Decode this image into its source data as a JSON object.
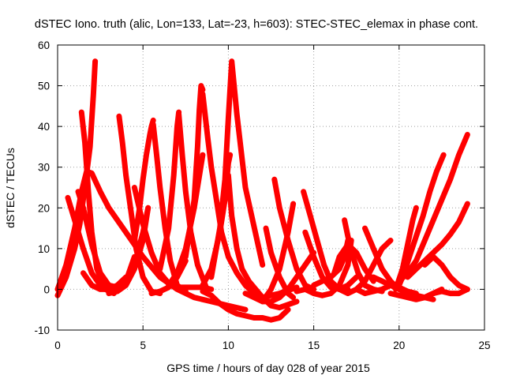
{
  "chart_data": {
    "type": "scatter",
    "title": "dSTEC Iono. truth (alic, Lon=133, Lat=-23, h=603): STEC-STEC_elemax in phase cont.",
    "xlabel": "GPS time / hours of day 028 of year 2015",
    "ylabel": "dSTEC  / TECUs",
    "xlim": [
      0,
      25
    ],
    "ylim": [
      -10,
      60
    ],
    "xticks": [
      0,
      5,
      10,
      15,
      20,
      25
    ],
    "xtick_labels": [
      "0",
      "5",
      "10",
      "15",
      "20",
      "25"
    ],
    "yticks": [
      -10,
      0,
      10,
      20,
      30,
      40,
      50,
      60
    ],
    "ytick_labels": [
      "-10",
      "0",
      "10",
      "20",
      "30",
      "40",
      "50",
      "60"
    ],
    "grid": true,
    "grid_style": "dotted",
    "marker": "+",
    "color": "#ff0000",
    "series": [
      {
        "x": [
          0.0,
          0.5,
          1.0,
          1.3,
          1.6,
          1.9,
          2.1,
          2.2
        ],
        "values": [
          -1.5,
          3.0,
          10.0,
          16.0,
          25.0,
          35.0,
          48.0,
          56.0
        ]
      },
      {
        "x": [
          1.4,
          1.6,
          1.8,
          2.0,
          2.3,
          2.8,
          3.3
        ],
        "values": [
          43.5,
          36.0,
          24.0,
          14.0,
          5.0,
          0.0,
          -1.0
        ]
      },
      {
        "x": [
          0.6,
          1.0,
          1.5,
          2.0,
          2.5,
          3.0,
          4.0,
          4.5
        ],
        "values": [
          22.5,
          17.0,
          10.0,
          4.0,
          1.0,
          -0.5,
          2.0,
          8.0
        ]
      },
      {
        "x": [
          0.0,
          0.5,
          1.0,
          1.4,
          1.7,
          2.0,
          2.5,
          3.0,
          4.0,
          5.0,
          6.0,
          7.0,
          8.0,
          9.0,
          10.0,
          11.0
        ],
        "values": [
          0.0,
          6.0,
          15.0,
          24.0,
          29.0,
          28.5,
          24.0,
          20.0,
          14.0,
          8.0,
          3.0,
          0.0,
          -2.0,
          -3.0,
          -4.0,
          -5.0
        ]
      },
      {
        "x": [
          1.2,
          1.5,
          2.0,
          2.5,
          3.0,
          3.5,
          4.0,
          4.5,
          5.0,
          5.3
        ],
        "values": [
          24.0,
          20.0,
          11.0,
          4.0,
          1.0,
          0.5,
          2.0,
          6.0,
          14.0,
          20.0
        ]
      },
      {
        "x": [
          1.5,
          2.0,
          2.5,
          3.0,
          3.5,
          4.0
        ],
        "values": [
          4.0,
          1.0,
          0.0,
          0.0,
          1.0,
          3.0
        ]
      },
      {
        "x": [
          3.6,
          3.8,
          4.0,
          4.3,
          4.6,
          5.0,
          5.5,
          6.0
        ],
        "values": [
          42.5,
          36.0,
          28.0,
          19.0,
          10.0,
          3.0,
          -0.5,
          -1.0
        ]
      },
      {
        "x": [
          3.0,
          3.5,
          4.0,
          4.5,
          5.0,
          5.3
        ],
        "values": [
          -1.0,
          -0.5,
          1.0,
          5.0,
          12.0,
          20.0
        ]
      },
      {
        "x": [
          4.5,
          4.8,
          5.0,
          5.2,
          5.4,
          5.5,
          5.6
        ],
        "values": [
          12.0,
          20.0,
          27.0,
          33.0,
          38.0,
          40.0,
          41.5
        ]
      },
      {
        "x": [
          5.6,
          5.8,
          6.0,
          6.3,
          6.6,
          7.0,
          7.5
        ],
        "values": [
          40.5,
          33.0,
          25.0,
          15.0,
          7.0,
          1.0,
          -0.5
        ]
      },
      {
        "x": [
          5.5,
          6.0,
          6.5,
          7.0,
          7.5
        ],
        "values": [
          -1.0,
          -0.5,
          0.5,
          3.0,
          7.0
        ]
      },
      {
        "x": [
          4.5,
          5.0,
          5.5,
          6.0,
          6.5,
          7.0,
          7.5,
          8.0,
          8.5,
          9.0
        ],
        "values": [
          25.0,
          16.0,
          9.0,
          4.0,
          1.5,
          0.5,
          0.5,
          0.5,
          0.5,
          0.0
        ]
      },
      {
        "x": [
          6.0,
          6.5,
          6.8,
          7.0,
          7.1
        ],
        "values": [
          5.0,
          15.0,
          28.0,
          40.0,
          43.5
        ]
      },
      {
        "x": [
          7.1,
          7.3,
          7.5,
          7.8,
          8.2,
          8.7
        ],
        "values": [
          43.0,
          33.0,
          24.0,
          14.0,
          6.0,
          0.5
        ]
      },
      {
        "x": [
          6.5,
          7.0,
          7.5,
          8.0,
          8.5
        ],
        "values": [
          1.0,
          4.0,
          10.0,
          20.0,
          33.0
        ]
      },
      {
        "x": [
          7.5,
          8.0,
          8.2,
          8.3,
          8.4,
          8.5
        ],
        "values": [
          8.0,
          22.0,
          35.0,
          44.0,
          50.0,
          49.0
        ]
      },
      {
        "x": [
          8.5,
          8.8,
          9.0,
          9.3,
          9.6,
          10.0,
          10.5,
          11.0,
          11.5,
          12.0,
          13.0,
          14.0
        ],
        "values": [
          48.0,
          37.0,
          30.0,
          22.0,
          14.0,
          8.0,
          4.0,
          1.0,
          -1.0,
          -2.0,
          -1.0,
          0.5
        ]
      },
      {
        "x": [
          8.5,
          9.0,
          9.5,
          9.8,
          10.0,
          10.1
        ],
        "values": [
          1.0,
          5.0,
          14.0,
          22.0,
          31.0,
          33.0
        ]
      },
      {
        "x": [
          9.0,
          9.5,
          9.8,
          10.0,
          10.2,
          10.5,
          11.0,
          12.0
        ],
        "values": [
          3.0,
          15.0,
          27.0,
          42.0,
          56.0,
          43.0,
          25.0,
          6.0
        ]
      },
      {
        "x": [
          10.0,
          10.2,
          10.5,
          10.8,
          11.2,
          11.6,
          12.0,
          12.5,
          13.0,
          14.0
        ],
        "values": [
          28.0,
          18.0,
          10.0,
          5.0,
          2.0,
          0.0,
          -2.0,
          -4.0,
          -4.5,
          -3.0
        ]
      },
      {
        "x": [
          8.5,
          9.0,
          9.5,
          10.0,
          10.5,
          11.0,
          11.5,
          12.0,
          12.5,
          13.0,
          13.5
        ],
        "values": [
          -0.5,
          -1.5,
          -3.5,
          -5.0,
          -6.0,
          -6.5,
          -7.0,
          -7.0,
          -7.5,
          -7.0,
          -5.0
        ]
      },
      {
        "x": [
          11.0,
          11.5,
          12.0,
          12.5,
          13.0,
          13.5,
          14.0,
          14.5,
          15.0
        ],
        "values": [
          -1.0,
          -2.0,
          -3.0,
          -3.0,
          -2.0,
          0.0,
          3.0,
          6.0,
          9.0
        ]
      },
      {
        "x": [
          12.2,
          12.5,
          13.0,
          13.5,
          13.8
        ],
        "values": [
          15.0,
          9.0,
          3.0,
          -1.0,
          -2.0
        ]
      },
      {
        "x": [
          12.0,
          12.5,
          13.0,
          13.5,
          13.8
        ],
        "values": [
          -3.0,
          0.0,
          5.0,
          14.0,
          21.0
        ]
      },
      {
        "x": [
          12.7,
          13.0,
          13.5,
          14.0,
          14.5,
          15.0
        ],
        "values": [
          27.0,
          20.0,
          12.0,
          5.0,
          1.0,
          0.0
        ]
      },
      {
        "x": [
          14.4,
          14.8,
          15.2,
          15.6,
          16.0,
          16.5,
          17.0
        ],
        "values": [
          24.0,
          18.0,
          12.0,
          6.0,
          2.0,
          0.0,
          0.0
        ]
      },
      {
        "x": [
          14.5,
          15.0,
          15.5,
          16.0,
          16.5,
          17.0,
          17.5
        ],
        "values": [
          14.0,
          8.0,
          3.0,
          0.5,
          0.0,
          1.0,
          3.0
        ]
      },
      {
        "x": [
          14.0,
          14.5,
          15.0,
          15.5,
          16.0,
          16.5,
          17.0,
          17.2
        ],
        "values": [
          -0.5,
          0.0,
          -1.0,
          -1.5,
          -1.0,
          1.0,
          6.0,
          12.0
        ]
      },
      {
        "x": [
          15.0,
          15.5,
          16.0,
          16.5,
          16.8,
          17.0
        ],
        "values": [
          1.0,
          2.0,
          3.0,
          5.0,
          8.0,
          12.0
        ]
      },
      {
        "x": [
          16.2,
          16.5,
          17.0,
          17.5,
          18.0,
          18.5
        ],
        "values": [
          4.0,
          8.0,
          11.0,
          9.0,
          5.0,
          2.0
        ]
      },
      {
        "x": [
          16.8,
          17.0,
          17.3,
          17.6,
          18.0,
          18.5,
          19.0
        ],
        "values": [
          17.0,
          13.0,
          8.0,
          4.0,
          1.0,
          0.0,
          -0.5
        ]
      },
      {
        "x": [
          16.5,
          17.0,
          17.5,
          18.0,
          18.5,
          19.0,
          19.5
        ],
        "values": [
          0.0,
          -1.0,
          0.0,
          2.0,
          6.0,
          10.0,
          12.0
        ]
      },
      {
        "x": [
          18.0,
          18.5,
          19.0,
          19.5,
          20.0
        ],
        "values": [
          15.0,
          10.0,
          5.0,
          2.0,
          0.0
        ]
      },
      {
        "x": [
          17.5,
          18.0,
          18.5,
          19.0,
          19.5,
          20.0,
          20.5,
          21.0
        ],
        "values": [
          0.0,
          -1.0,
          -0.5,
          0.0,
          1.0,
          0.5,
          -0.5,
          -1.0
        ]
      },
      {
        "x": [
          18.5,
          19.0,
          19.5,
          20.0,
          20.5,
          21.0,
          21.5,
          22.0
        ],
        "values": [
          3.0,
          2.0,
          1.0,
          0.0,
          -1.0,
          -1.5,
          -2.0,
          -2.5
        ]
      },
      {
        "x": [
          19.5,
          20.0,
          20.5,
          21.0,
          21.5,
          22.0,
          22.5
        ],
        "values": [
          -1.0,
          -1.5,
          -2.0,
          -2.5,
          -2.0,
          -1.0,
          0.0
        ]
      },
      {
        "x": [
          20.0,
          20.3,
          20.6,
          21.0,
          21.4,
          21.8,
          22.2,
          22.6
        ],
        "values": [
          1.0,
          4.0,
          8.0,
          13.0,
          18.0,
          24.0,
          29.0,
          33.0
        ]
      },
      {
        "x": [
          19.8,
          20.2,
          20.5,
          20.8,
          21.0
        ],
        "values": [
          0.0,
          5.0,
          11.0,
          17.0,
          20.0
        ]
      },
      {
        "x": [
          20.0,
          20.5,
          21.0,
          21.5,
          22.0,
          22.5,
          23.0,
          23.5,
          24.0
        ],
        "values": [
          2.0,
          4.0,
          7.0,
          12.0,
          17.0,
          22.0,
          27.0,
          33.0,
          38.0
        ]
      },
      {
        "x": [
          20.5,
          21.0,
          21.5,
          22.0,
          22.5,
          23.0,
          23.5,
          24.0
        ],
        "values": [
          3.0,
          5.0,
          7.0,
          9.0,
          11.0,
          13.5,
          16.5,
          21.0
        ]
      },
      {
        "x": [
          21.5,
          22.0,
          22.5,
          23.0,
          23.5,
          24.0
        ],
        "values": [
          6.0,
          8.0,
          6.0,
          3.0,
          1.0,
          0.0
        ]
      },
      {
        "x": [
          21.5,
          22.0,
          22.5,
          23.0,
          23.5,
          24.0
        ],
        "values": [
          -2.0,
          -1.0,
          -0.5,
          -1.0,
          -1.0,
          0.0
        ]
      }
    ]
  }
}
